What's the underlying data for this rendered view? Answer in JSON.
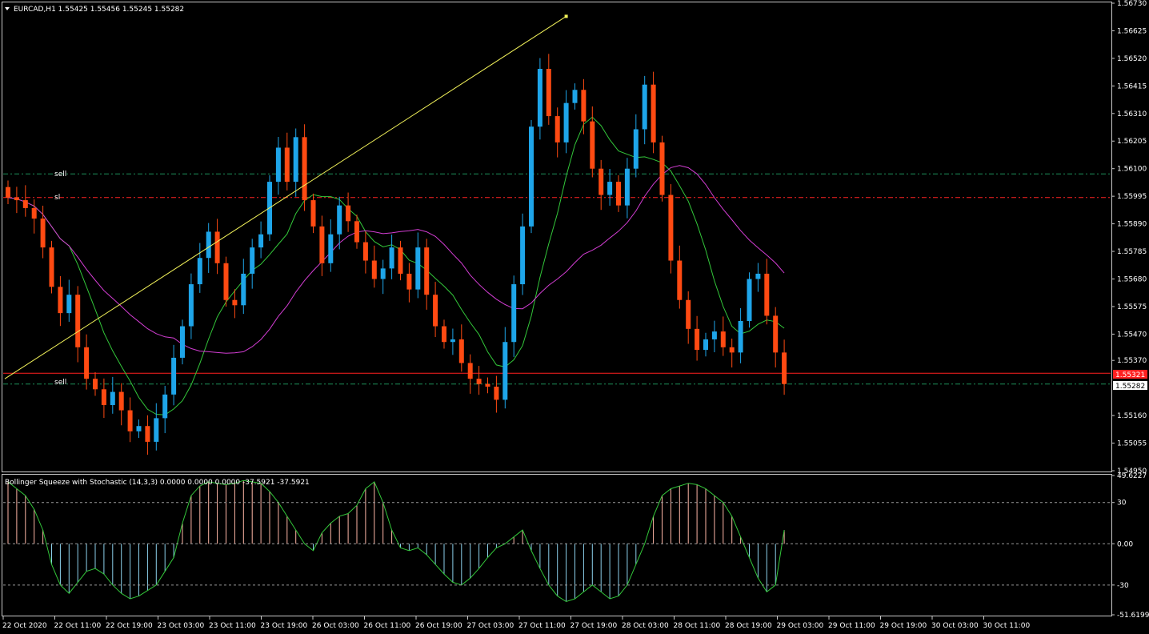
{
  "header": {
    "symbol_text": "EURCAD,H1  1.55425 1.55456 1.55245 1.55282"
  },
  "indicator": {
    "title_text": "Bollinger Squeeze with Stochastic (14,3,3) 0.0000 0.0000 0.0000 -37.5921 -37.5921"
  },
  "labels": {
    "sell_top": "sell",
    "sl": "sl",
    "sell_bottom": "sell"
  },
  "colors": {
    "background": "#000000",
    "bull_candle": "#1ea5e9",
    "bear_candle": "#ff4a12",
    "ma_fast": "#33c73a",
    "ma_slow": "#d23dd2",
    "trendline": "#f2f25a",
    "level_sell": "#1d8f5a",
    "level_sl": "#ff2222",
    "price_line": "#ff2020",
    "hist_up": "#ffb6a6",
    "hist_down": "#8dd1ec",
    "stoch": "#33c73a"
  },
  "chart_data": {
    "type": "candlestick",
    "symbol": "EURCAD",
    "timeframe": "H1",
    "price_axis": {
      "range": [
        1.5495,
        1.5673
      ],
      "ticks": [
        "1.56730",
        "1.56625",
        "1.56520",
        "1.56415",
        "1.56310",
        "1.56205",
        "1.56100",
        "1.55995",
        "1.55890",
        "1.55785",
        "1.55680",
        "1.55575",
        "1.55470",
        "1.55370",
        "1.55160",
        "1.55055",
        "1.54950"
      ]
    },
    "time_axis": [
      "22 Oct 2020",
      "22 Oct 11:00",
      "22 Oct 19:00",
      "23 Oct 03:00",
      "23 Oct 11:00",
      "23 Oct 19:00",
      "26 Oct 03:00",
      "26 Oct 11:00",
      "26 Oct 19:00",
      "27 Oct 03:00",
      "27 Oct 11:00",
      "27 Oct 19:00",
      "28 Oct 03:00",
      "28 Oct 11:00",
      "28 Oct 19:00",
      "29 Oct 03:00",
      "29 Oct 11:00",
      "29 Oct 19:00",
      "30 Oct 03:00",
      "30 Oct 11:00"
    ],
    "closes": [
      1.5599,
      1.5598,
      1.5595,
      1.5591,
      1.558,
      1.5565,
      1.5555,
      1.5562,
      1.5542,
      1.553,
      1.5526,
      1.552,
      1.5525,
      1.5518,
      1.551,
      1.5512,
      1.5506,
      1.5515,
      1.5524,
      1.5538,
      1.555,
      1.5566,
      1.5576,
      1.5586,
      1.5574,
      1.556,
      1.5558,
      1.557,
      1.558,
      1.5585,
      1.5605,
      1.5618,
      1.5605,
      1.5622,
      1.5598,
      1.5588,
      1.5574,
      1.5585,
      1.5596,
      1.559,
      1.5582,
      1.5575,
      1.5568,
      1.5572,
      1.558,
      1.557,
      1.5564,
      1.558,
      1.5562,
      1.555,
      1.5544,
      1.5545,
      1.5536,
      1.553,
      1.5528,
      1.5527,
      1.5522,
      1.5544,
      1.5566,
      1.5588,
      1.5626,
      1.5648,
      1.563,
      1.562,
      1.5635,
      1.564,
      1.5628,
      1.561,
      1.56,
      1.5605,
      1.5596,
      1.561,
      1.5625,
      1.5642,
      1.562,
      1.56,
      1.5575,
      1.556,
      1.5549,
      1.5541,
      1.5545,
      1.5548,
      1.5542,
      1.554,
      1.5552,
      1.5568,
      1.557,
      1.5554,
      1.554,
      1.5528
    ],
    "price_labels": {
      "current": "1.55282",
      "red_line": "1.55321"
    },
    "levels": [
      {
        "label": "sell",
        "price": 1.5608
      },
      {
        "label": "sl",
        "price": 1.5599
      },
      {
        "label": "sell",
        "price": 1.5528
      }
    ],
    "trendline": [
      [
        1.553,
        0
      ],
      [
        1.5668,
        1
      ]
    ],
    "indicator": {
      "name": "Bollinger Squeeze with Stochastic (14,3,3)",
      "ticks": [
        "49.6227",
        "30",
        "0.00",
        "-30",
        "-51.6199"
      ],
      "range": [
        -51.6199,
        49.6227
      ],
      "values": [
        45,
        40,
        35,
        25,
        10,
        -15,
        -30,
        -36,
        -28,
        -20,
        -18,
        -22,
        -30,
        -36,
        -40,
        -38,
        -34,
        -30,
        -20,
        -10,
        15,
        35,
        42,
        45,
        44,
        43,
        44,
        46,
        45,
        44,
        38,
        30,
        20,
        10,
        0,
        -5,
        8,
        15,
        20,
        22,
        28,
        40,
        45,
        30,
        10,
        -3,
        -5,
        -3,
        -8,
        -15,
        -22,
        -28,
        -30,
        -25,
        -18,
        -10,
        -3,
        0,
        5,
        10,
        -5,
        -18,
        -30,
        -38,
        -42,
        -40,
        -35,
        -30,
        -35,
        -40,
        -38,
        -30,
        -15,
        0,
        20,
        35,
        40,
        42,
        44,
        43,
        40,
        35,
        30,
        20,
        5,
        -10,
        -25,
        -35,
        -30,
        10
      ]
    }
  }
}
